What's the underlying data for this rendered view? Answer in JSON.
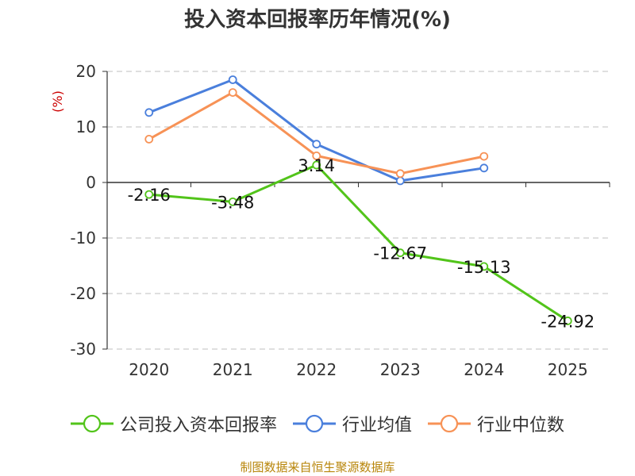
{
  "title": "投入资本回报率历年情况(%)",
  "source": "制图数据来自恒生聚源数据库",
  "colors": {
    "grid": "#cccccc",
    "axis": "#333333",
    "unit": "#cc0000"
  },
  "chart_data": {
    "type": "line",
    "title": "投入资本回报率历年情况(%)",
    "unit_label": "(%)",
    "categories": [
      "2020",
      "2021",
      "2022",
      "2023",
      "2024",
      "2025"
    ],
    "ylim": [
      -30,
      20
    ],
    "yticks": [
      20,
      10,
      0,
      -10,
      -20,
      -30
    ],
    "grid": "horizontal dashed",
    "legend_position": "bottom",
    "series": [
      {
        "name": "公司投入资本回报率",
        "color": "#52c41a",
        "values": [
          -2.16,
          -3.48,
          3.14,
          -12.67,
          -15.13,
          -24.92
        ],
        "data_labels": [
          "-2.16",
          "-3.48",
          "3.14",
          "-12.67",
          "-15.13",
          "-24.92"
        ]
      },
      {
        "name": "行业均值",
        "color": "#4a7fdc",
        "values": [
          12.6,
          18.5,
          6.9,
          0.3,
          2.6,
          null
        ]
      },
      {
        "name": "行业中位数",
        "color": "#f79256",
        "values": [
          7.8,
          16.2,
          4.8,
          1.6,
          4.7,
          null
        ]
      }
    ]
  }
}
